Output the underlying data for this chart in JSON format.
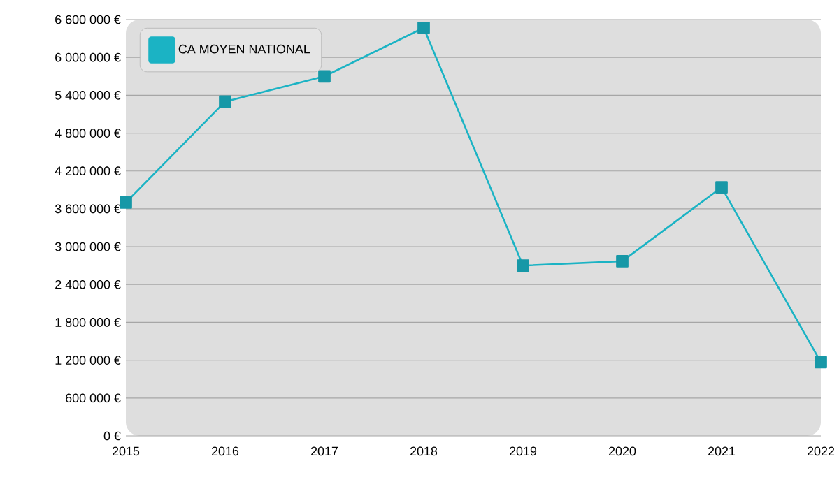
{
  "chart_data": {
    "type": "line",
    "x": [
      2015,
      2016,
      2017,
      2018,
      2019,
      2020,
      2021,
      2022
    ],
    "series": [
      {
        "name": "CA MOYEN NATIONAL",
        "color": "#1bb3c4",
        "values": [
          3700000,
          5300000,
          5700000,
          6470000,
          2700000,
          2770000,
          3940000,
          1170000
        ]
      }
    ],
    "xlim": [
      2015,
      2022
    ],
    "xticks": [
      2015,
      2016,
      2017,
      2018,
      2019,
      2020,
      2021,
      2022
    ],
    "ylim": [
      0,
      6600000
    ],
    "yticks": [
      {
        "value": 0,
        "label": "0 €"
      },
      {
        "value": 600000,
        "label": "600 000 €"
      },
      {
        "value": 1200000,
        "label": "1 200 000 €"
      },
      {
        "value": 1800000,
        "label": "1 800 000 €"
      },
      {
        "value": 2400000,
        "label": "2 400 000 €"
      },
      {
        "value": 3000000,
        "label": "3 000 000 €"
      },
      {
        "value": 3600000,
        "label": "3 600 000 €"
      },
      {
        "value": 4200000,
        "label": "4 200 000 €"
      },
      {
        "value": 4800000,
        "label": "4 800 000 €"
      },
      {
        "value": 5400000,
        "label": "5 400 000 €"
      },
      {
        "value": 6000000,
        "label": "6 000 000 €"
      },
      {
        "value": 6600000,
        "label": "6 600 000 €"
      }
    ],
    "grid": "y",
    "legend": "top left",
    "marker": "square",
    "line_style": "solid"
  }
}
